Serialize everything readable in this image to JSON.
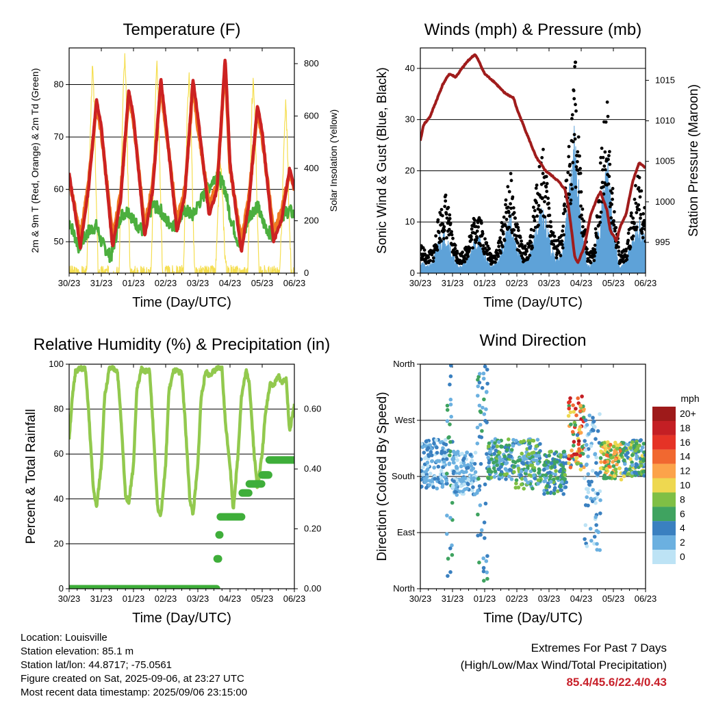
{
  "chart_data": [
    {
      "type": "line",
      "title": "Temperature (F)",
      "xlabel": "Time (Day/UTC)",
      "ylabel": "2m & 9m T (Red, Orange) & 2m Td (Green)",
      "y2label": "Solar Insolation (Yellow)",
      "x_ticks": [
        "30/23",
        "31/23",
        "01/23",
        "02/23",
        "03/23",
        "04/23",
        "05/23",
        "06/23"
      ],
      "ylim": [
        44,
        87
      ],
      "yticks": [
        50,
        60,
        70,
        80
      ],
      "y2lim": [
        0,
        860
      ],
      "y2ticks": [
        0,
        200,
        400,
        600,
        800
      ],
      "grid": true,
      "colors": {
        "t2m": "#cc2222",
        "t9m": "#f07a22",
        "td2m": "#4caf3e",
        "solar": "#f5de50"
      },
      "series": [
        {
          "name": "2m T",
          "x": [
            0,
            0.35,
            0.6,
            0.85,
            1.0,
            1.35,
            1.6,
            1.85,
            2.0,
            2.35,
            2.6,
            2.85,
            3.0,
            3.35,
            3.6,
            3.85,
            4.0,
            4.35,
            4.6,
            4.85,
            5.0,
            5.35,
            5.6,
            5.85,
            6.0,
            6.35,
            6.6,
            6.85,
            7.0
          ],
          "values": [
            63,
            49,
            60,
            77,
            72,
            49,
            58,
            79,
            74,
            51,
            60,
            81,
            73,
            52,
            59,
            81,
            74,
            55,
            60,
            85.4,
            65,
            48,
            58,
            76,
            71,
            50,
            54,
            64,
            60
          ]
        },
        {
          "name": "9m T",
          "x": [
            0,
            0.35,
            0.6,
            0.85,
            1.0,
            1.35,
            1.6,
            1.85,
            2.0,
            2.35,
            2.6,
            2.85,
            3.0,
            3.35,
            3.6,
            3.85,
            4.0,
            4.35,
            4.6,
            4.85,
            5.0,
            5.35,
            5.6,
            5.85,
            6.0,
            6.35,
            6.6,
            6.85,
            7.0
          ],
          "values": [
            62,
            51,
            61,
            76,
            71,
            51,
            59,
            78,
            73,
            53,
            61,
            80,
            72,
            54,
            60,
            80,
            72,
            57,
            61,
            84,
            64,
            50,
            59,
            75,
            70,
            52,
            56,
            63,
            60
          ]
        },
        {
          "name": "2m Td",
          "x": [
            0,
            0.3,
            0.6,
            0.85,
            1.0,
            1.3,
            1.6,
            1.85,
            2.0,
            2.3,
            2.6,
            2.85,
            3.0,
            3.3,
            3.6,
            3.85,
            4.0,
            4.3,
            4.6,
            4.85,
            5.0,
            5.3,
            5.6,
            5.85,
            6.0,
            6.3,
            6.6,
            6.85,
            7.0
          ],
          "values": [
            54,
            49,
            52,
            53,
            50,
            47,
            55,
            56,
            54,
            52,
            57,
            56,
            54,
            53,
            56,
            55,
            57,
            60,
            63,
            60,
            55,
            49,
            55,
            57,
            54,
            51,
            55,
            56,
            55
          ]
        },
        {
          "name": "Solar Insolation",
          "axis": "y2",
          "x": [
            0,
            0.55,
            0.62,
            0.68,
            0.73,
            0.78,
            0.84,
            0.9,
            1.0,
            1.55,
            1.62,
            1.68,
            1.73,
            1.78,
            1.84,
            1.9,
            2.0,
            2.55,
            2.62,
            2.68,
            2.73,
            2.78,
            2.84,
            2.9,
            3.0,
            3.55,
            3.62,
            3.68,
            3.73,
            3.78,
            3.84,
            3.9,
            4.0,
            4.55,
            4.62,
            4.68,
            4.73,
            4.78,
            4.84,
            4.9,
            5.0,
            5.55,
            5.62,
            5.68,
            5.73,
            5.78,
            5.84,
            5.9,
            6.0,
            6.55,
            6.62,
            6.68,
            6.73,
            6.78,
            6.84,
            6.9,
            7.0
          ],
          "values": [
            0,
            0,
            350,
            650,
            790,
            640,
            300,
            0,
            0,
            0,
            360,
            700,
            820,
            650,
            280,
            0,
            0,
            0,
            350,
            680,
            800,
            620,
            300,
            0,
            0,
            0,
            340,
            650,
            760,
            600,
            280,
            0,
            0,
            0,
            200,
            420,
            380,
            250,
            80,
            0,
            0,
            0,
            330,
            640,
            740,
            600,
            260,
            0,
            0,
            0,
            250,
            500,
            640,
            520,
            200,
            0,
            0
          ]
        }
      ]
    },
    {
      "type": "line",
      "title": "Winds (mph) & Pressure (mb)",
      "xlabel": "Time (Day/UTC)",
      "ylabel": "Sonic Wind & Gust (Blue, Black)",
      "y2label": "Station Pressure (Maroon)",
      "x_ticks": [
        "30/23",
        "31/23",
        "01/23",
        "02/23",
        "03/23",
        "04/23",
        "05/23",
        "06/23"
      ],
      "ylim": [
        0,
        44
      ],
      "yticks": [
        0,
        10,
        20,
        30,
        40
      ],
      "y2lim": [
        991.2,
        1019
      ],
      "y2ticks": [
        995,
        1000,
        1005,
        1010,
        1015
      ],
      "grid": true,
      "colors": {
        "wind": "#5ea2d8",
        "gust": "#000000",
        "pressure": "#a01c1c"
      },
      "series": [
        {
          "name": "Sonic Wind",
          "x": [
            0,
            0.2,
            0.4,
            0.6,
            0.8,
            1.0,
            1.2,
            1.4,
            1.6,
            1.8,
            2.0,
            2.2,
            2.4,
            2.6,
            2.8,
            3.0,
            3.2,
            3.4,
            3.6,
            3.8,
            4.0,
            4.2,
            4.4,
            4.6,
            4.8,
            5.0,
            5.2,
            5.4,
            5.6,
            5.8,
            6.0,
            6.2,
            6.4,
            6.6,
            6.8,
            7.0
          ],
          "values": [
            2,
            1,
            2,
            6,
            7,
            3,
            1,
            2,
            4,
            6,
            3,
            1,
            2,
            5,
            9,
            4,
            2,
            3,
            7,
            10,
            6,
            2,
            3,
            11,
            22,
            8,
            1,
            2,
            10,
            19,
            6,
            1,
            2,
            6,
            8,
            5
          ]
        },
        {
          "name": "Gust",
          "x": [
            0,
            0.2,
            0.4,
            0.6,
            0.8,
            1.0,
            1.2,
            1.4,
            1.6,
            1.8,
            2.0,
            2.2,
            2.4,
            2.6,
            2.8,
            3.0,
            3.2,
            3.4,
            3.6,
            3.8,
            4.0,
            4.2,
            4.4,
            4.6,
            4.8,
            5.0,
            5.2,
            5.4,
            5.6,
            5.8,
            6.0,
            6.2,
            6.4,
            6.6,
            6.8,
            7.0
          ],
          "values": [
            5,
            3,
            4,
            10,
            13,
            6,
            3,
            4,
            8,
            11,
            6,
            3,
            4,
            10,
            16,
            8,
            4,
            5,
            14,
            21,
            12,
            5,
            6,
            20,
            33,
            14,
            3,
            4,
            18,
            29,
            12,
            3,
            4,
            12,
            16,
            10
          ]
        },
        {
          "name": "Gust max",
          "x": [
            4.82
          ],
          "values": [
            41.2
          ]
        },
        {
          "name": "Station Pressure",
          "axis": "y2",
          "x": [
            0,
            0.1,
            0.3,
            0.5,
            0.7,
            0.9,
            1.1,
            1.3,
            1.5,
            1.7,
            1.8,
            2.0,
            2.3,
            2.6,
            2.9,
            3.0,
            3.3,
            3.6,
            3.9,
            4.1,
            4.3,
            4.5,
            4.6,
            4.7,
            4.8,
            4.9,
            5.1,
            5.3,
            5.5,
            5.6,
            5.8,
            5.9,
            6.1,
            6.2,
            6.4,
            6.6,
            6.8,
            7.0
          ],
          "values": [
            1007.5,
            1009.5,
            1010.5,
            1012.5,
            1014.5,
            1015.8,
            1015.4,
            1016.5,
            1017.5,
            1018.2,
            1017.5,
            1015.8,
            1014.8,
            1013.5,
            1012.8,
            1011.5,
            1008.5,
            1005.5,
            1003.8,
            1003.2,
            1002.5,
            1001.5,
            999.5,
            996.5,
            993.2,
            992.5,
            994.5,
            998.5,
            1000.5,
            1001.2,
            999,
            996.5,
            995.2,
            996.8,
            998.5,
            1002.5,
            1004.8,
            1004.2
          ]
        }
      ]
    },
    {
      "type": "line",
      "title": "Relative Humidity (%) & Precipitation (in)",
      "xlabel": "Time (Day/UTC)",
      "ylabel": "Percent & Total Rainfall",
      "x_ticks": [
        "30/23",
        "31/23",
        "01/23",
        "02/23",
        "03/23",
        "04/23",
        "05/23",
        "06/23"
      ],
      "ylim": [
        0,
        100
      ],
      "yticks": [
        0,
        20,
        40,
        60,
        80,
        100
      ],
      "y2lim": [
        0,
        0.75
      ],
      "y2ticks": [
        "0.00",
        "0.20",
        "0.40",
        "0.60"
      ],
      "grid": true,
      "colors": {
        "rh": "#92c94e",
        "precip": "#3fae3a"
      },
      "series": [
        {
          "name": "Relative Humidity",
          "x": [
            0,
            0.1,
            0.2,
            0.35,
            0.5,
            0.6,
            0.75,
            0.85,
            1.0,
            1.1,
            1.25,
            1.35,
            1.5,
            1.6,
            1.75,
            1.85,
            2.0,
            2.1,
            2.25,
            2.35,
            2.5,
            2.6,
            2.75,
            2.85,
            3.0,
            3.1,
            3.25,
            3.35,
            3.5,
            3.6,
            3.75,
            3.85,
            4.0,
            4.1,
            4.25,
            4.35,
            4.5,
            4.6,
            4.75,
            4.85,
            5.0,
            5.1,
            5.25,
            5.35,
            5.5,
            5.6,
            5.75,
            5.85,
            6.0,
            6.1,
            6.25,
            6.35,
            6.5,
            6.6,
            6.75,
            6.85,
            7.0
          ],
          "values": [
            67,
            85,
            97,
            98,
            98,
            80,
            45,
            36,
            55,
            85,
            98,
            98,
            97,
            78,
            42,
            38,
            55,
            88,
            98,
            97,
            97,
            75,
            36,
            33,
            55,
            88,
            97,
            97,
            96,
            76,
            40,
            33,
            55,
            85,
            97,
            95,
            97,
            98,
            98,
            75,
            55,
            35,
            60,
            85,
            97,
            92,
            60,
            45,
            60,
            78,
            92,
            90,
            95,
            92,
            93,
            70,
            82
          ]
        },
        {
          "name": "Total Precipitation",
          "axis": "y2",
          "x": [
            0,
            4.58,
            4.6,
            4.65,
            4.7,
            5.32,
            5.38,
            5.55,
            5.6,
            5.95,
            6.0,
            6.15,
            6.22,
            7.0
          ],
          "values": [
            0,
            0,
            0.1,
            0.18,
            0.24,
            0.24,
            0.32,
            0.32,
            0.35,
            0.35,
            0.38,
            0.38,
            0.43,
            0.43
          ]
        }
      ]
    },
    {
      "type": "scatter",
      "title": "Wind Direction",
      "xlabel": "Time (Day/UTC)",
      "ylabel": "Direction (Colored By Speed)",
      "x_ticks": [
        "30/23",
        "31/23",
        "01/23",
        "02/23",
        "03/23",
        "04/23",
        "05/23",
        "06/23"
      ],
      "ylim": [
        0,
        360
      ],
      "ytick_labels": [
        "North",
        "East",
        "South",
        "West",
        "North"
      ],
      "grid": true,
      "legend": {
        "title": "mph",
        "position": "right",
        "labels": [
          "20+",
          "18",
          "16",
          "14",
          "12",
          "10",
          "8",
          "6",
          "4",
          "2",
          "0"
        ],
        "colors": [
          "#9e1a1a",
          "#c41f24",
          "#e53326",
          "#f16830",
          "#fca34a",
          "#eed850",
          "#7fbf45",
          "#3fa360",
          "#3a80c0",
          "#6bb0e0",
          "#bde3f5"
        ]
      },
      "clusters": [
        {
          "x": [
            0,
            0.85
          ],
          "dir": [
            160,
            240
          ],
          "speed": [
            0,
            5
          ]
        },
        {
          "x": [
            0.8,
            1.0
          ],
          "dir": [
            20,
            360
          ],
          "speed": [
            2,
            7
          ]
        },
        {
          "x": [
            1.0,
            1.75
          ],
          "dir": [
            150,
            220
          ],
          "speed": [
            0,
            4
          ]
        },
        {
          "x": [
            1.75,
            2.1
          ],
          "dir": [
            10,
            360
          ],
          "speed": [
            1,
            6
          ]
        },
        {
          "x": [
            2.1,
            2.9
          ],
          "dir": [
            175,
            240
          ],
          "speed": [
            1,
            8
          ]
        },
        {
          "x": [
            2.9,
            3.75
          ],
          "dir": [
            160,
            240
          ],
          "speed": [
            1,
            9
          ]
        },
        {
          "x": [
            3.8,
            4.55
          ],
          "dir": [
            150,
            220
          ],
          "speed": [
            2,
            8
          ]
        },
        {
          "x": [
            4.6,
            5.1
          ],
          "dir": [
            190,
            310
          ],
          "speed": [
            4,
            20
          ]
        },
        {
          "x": [
            5.1,
            5.6
          ],
          "dir": [
            60,
            280
          ],
          "speed": [
            0,
            5
          ]
        },
        {
          "x": [
            5.6,
            6.3
          ],
          "dir": [
            175,
            235
          ],
          "speed": [
            5,
            14
          ]
        },
        {
          "x": [
            6.3,
            7.0
          ],
          "dir": [
            180,
            240
          ],
          "speed": [
            2,
            10
          ]
        }
      ]
    }
  ],
  "footer": {
    "location": "Location: Louisville",
    "elevation": "Station elevation: 85.1 m",
    "latlon": "Station lat/lon: 44.8717; -75.0561",
    "created": "Figure created on Sat, 2025-09-06, at 23:27 UTC",
    "recent": "Most recent data timestamp: 2025/09/06 23:15:00",
    "extremes_title": "Extremes For Past 7 Days",
    "extremes_sub": "(High/Low/Max Wind/Total Precipitation)",
    "extremes_values": "85.4/45.6/22.4/0.43"
  }
}
